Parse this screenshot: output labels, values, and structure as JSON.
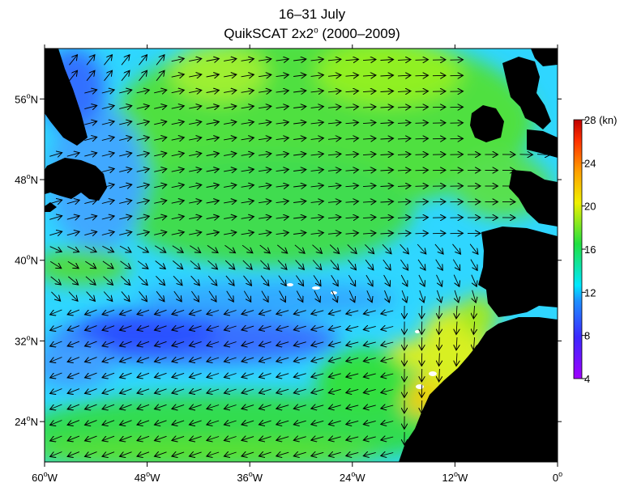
{
  "title": {
    "line1": "16–31 July",
    "line2_prefix": "QuikSCAT 2x2",
    "line2_sup": "o",
    "line2_suffix": " (2000–2009)"
  },
  "axes": {
    "lon_ticks": [
      {
        "value": -60,
        "num": "60",
        "hemi": "W"
      },
      {
        "value": -48,
        "num": "48",
        "hemi": "W"
      },
      {
        "value": -36,
        "num": "36",
        "hemi": "W"
      },
      {
        "value": -24,
        "num": "24",
        "hemi": "W"
      },
      {
        "value": -12,
        "num": "12",
        "hemi": "W"
      },
      {
        "value": 0,
        "num": "0",
        "hemi": ""
      }
    ],
    "lat_ticks": [
      {
        "value": 56,
        "num": "56",
        "hemi": "N"
      },
      {
        "value": 48,
        "num": "48",
        "hemi": "N"
      },
      {
        "value": 40,
        "num": "40",
        "hemi": "N"
      },
      {
        "value": 32,
        "num": "32",
        "hemi": "N"
      },
      {
        "value": 24,
        "num": "24",
        "hemi": "N"
      }
    ],
    "lon_range": [
      -60,
      0
    ],
    "lat_range": [
      20,
      61
    ]
  },
  "colorbar": {
    "unit": "(kn)",
    "ticks": [
      4,
      8,
      12,
      16,
      20,
      24,
      28
    ],
    "range": [
      4,
      28
    ],
    "stops": [
      "#a000ff",
      "#3c28ff",
      "#1e90ff",
      "#00e8ff",
      "#20e040",
      "#f0f000",
      "#ffa000",
      "#ff3000",
      "#c00000"
    ]
  },
  "field_colors": {
    "ocean_base": "#2fd0ff",
    "land": "#000000"
  }
}
